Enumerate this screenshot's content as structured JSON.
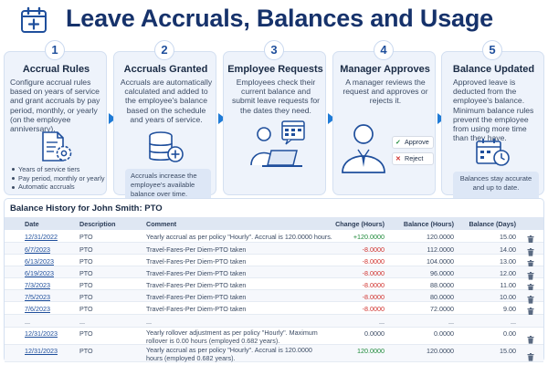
{
  "header": {
    "title": "Leave Accruals, Balances and Usage",
    "icon": "calendar-plus-icon"
  },
  "steps": [
    {
      "number": "1",
      "title": "Accrual Rules",
      "description": "Configure accrual rules based on years of service and grant accruals by pay period, monthly, or yearly (on the employee anniversary).",
      "icon": "document-gear-icon",
      "bullets": [
        "Years of service tiers",
        "Pay period, monthly or yearly",
        "Automatic accruals"
      ]
    },
    {
      "number": "2",
      "title": "Accruals Granted",
      "description": "Accruals are automatically calculated and added to the employee's balance based on the schedule and years of service.",
      "icon": "database-plus-icon",
      "note": "Accruals increase the employee's available balance over time."
    },
    {
      "number": "3",
      "title": "Employee Requests",
      "description": "Employees check their current balance and submit leave requests for the dates they need.",
      "icon": "employee-laptop-calendar-icon"
    },
    {
      "number": "4",
      "title": "Manager Approves",
      "description": "A manager reviews the request and approves or rejects it.",
      "icon": "manager-icon",
      "approve_label": "Approve",
      "reject_label": "Reject"
    },
    {
      "number": "5",
      "title": "Balance Updated",
      "description": "Approved leave is deducted from the employee's balance. Minimum balance rules prevent the employee from using more time than they have.",
      "icon": "calendar-clock-icon",
      "note": "Balances stay accurate and up to date."
    }
  ],
  "table": {
    "title": "Balance History for John Smith: PTO",
    "columns": {
      "date": "Date",
      "description": "Description",
      "comment": "Comment",
      "change": "Change (Hours)",
      "balance_hours": "Balance (Hours)",
      "balance_days": "Balance (Days)"
    },
    "rows": [
      {
        "date": "12/31/2022",
        "description": "PTO",
        "comment": "Yearly accrual as per policy \"Hourly\". Accrual is 120.0000 hours.",
        "change": "+120.0000",
        "balance_hours": "120.0000",
        "balance_days": "15.00"
      },
      {
        "date": "6/7/2023",
        "description": "PTO",
        "comment": "Travel-Fares-Per Diem-PTO taken",
        "change": "-8.0000",
        "balance_hours": "112.0000",
        "balance_days": "14.00"
      },
      {
        "date": "6/13/2023",
        "description": "PTO",
        "comment": "Travel-Fares-Per Diem-PTO taken",
        "change": "-8.0000",
        "balance_hours": "104.0000",
        "balance_days": "13.00"
      },
      {
        "date": "6/19/2023",
        "description": "PTO",
        "comment": "Travel-Fares-Per Diem-PTO taken",
        "change": "-8.0000",
        "balance_hours": "96.0000",
        "balance_days": "12.00"
      },
      {
        "date": "7/3/2023",
        "description": "PTO",
        "comment": "Travel-Fares-Per Diem-PTO taken",
        "change": "-8.0000",
        "balance_hours": "88.0000",
        "balance_days": "11.00"
      },
      {
        "date": "7/5/2023",
        "description": "PTO",
        "comment": "Travel-Fares-Per Diem-PTO taken",
        "change": "-8.0000",
        "balance_hours": "80.0000",
        "balance_days": "10.00"
      },
      {
        "date": "7/6/2023",
        "description": "PTO",
        "comment": "Travel-Fares-Per Diem-PTO taken",
        "change": "-8.0000",
        "balance_hours": "72.0000",
        "balance_days": "9.00"
      },
      {
        "date": "...",
        "description": "...",
        "comment": "...",
        "change": "...",
        "balance_hours": "...",
        "balance_days": "..."
      },
      {
        "date": "12/31/2023",
        "description": "PTO",
        "comment": "Yearly rollover adjustment as per policy \"Hourly\". Maximum rollover is 0.00 hours (employed 0.682 years).",
        "change": "0.0000",
        "balance_hours": "0.0000",
        "balance_days": "0.00"
      },
      {
        "date": "12/31/2023",
        "description": "PTO",
        "comment": "Yearly accrual as per policy \"Hourly\". Accrual is 120.0000 hours (employed 0.682 years).",
        "change": "120.0000",
        "balance_hours": "120.0000",
        "balance_days": "15.00"
      }
    ]
  },
  "colors": {
    "title": "#16326b",
    "accent": "#1f4f9c",
    "card_bg": "#eef3fb",
    "negative": "#d0312d",
    "positive": "#1e8a3a"
  }
}
